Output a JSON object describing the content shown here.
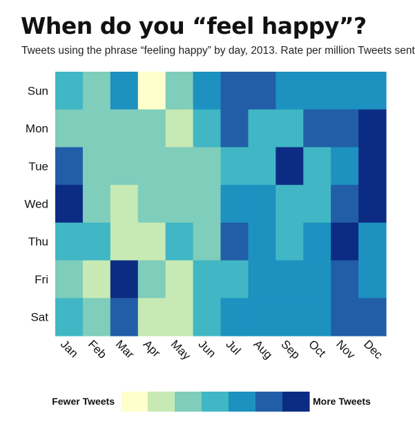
{
  "title": "When do you “feel happy”?",
  "subtitle": "Tweets using the phrase “feeling happy” by day, 2013. Rate per million Tweets sent",
  "chart_data": {
    "type": "heatmap",
    "x": [
      "Jan",
      "Feb",
      "Mar",
      "Apr",
      "May",
      "Jun",
      "Jul",
      "Aug",
      "Sep",
      "Oct",
      "Nov",
      "Dec"
    ],
    "y": [
      "Sun",
      "Mon",
      "Tue",
      "Wed",
      "Thu",
      "Fri",
      "Sat"
    ],
    "levels": [
      "#ffffcc",
      "#c7e9b4",
      "#7fcdbb",
      "#41b6c4",
      "#1d91c0",
      "#225ea8",
      "#0c2c84"
    ],
    "values": [
      [
        3,
        2,
        4,
        0,
        2,
        4,
        5,
        5,
        4,
        4,
        4,
        4
      ],
      [
        2,
        2,
        2,
        2,
        1,
        3,
        5,
        3,
        3,
        5,
        5,
        6
      ],
      [
        5,
        2,
        2,
        2,
        2,
        2,
        3,
        3,
        6,
        3,
        4,
        6
      ],
      [
        6,
        2,
        1,
        2,
        2,
        2,
        4,
        4,
        3,
        3,
        5,
        6
      ],
      [
        3,
        3,
        1,
        1,
        3,
        2,
        5,
        4,
        3,
        4,
        6,
        4
      ],
      [
        2,
        1,
        6,
        2,
        1,
        3,
        3,
        4,
        4,
        4,
        5,
        4
      ],
      [
        3,
        2,
        5,
        1,
        1,
        3,
        4,
        4,
        4,
        4,
        5,
        5
      ]
    ],
    "legend": {
      "low_label": "Fewer Tweets",
      "high_label": "More Tweets",
      "position": "bottom"
    }
  }
}
